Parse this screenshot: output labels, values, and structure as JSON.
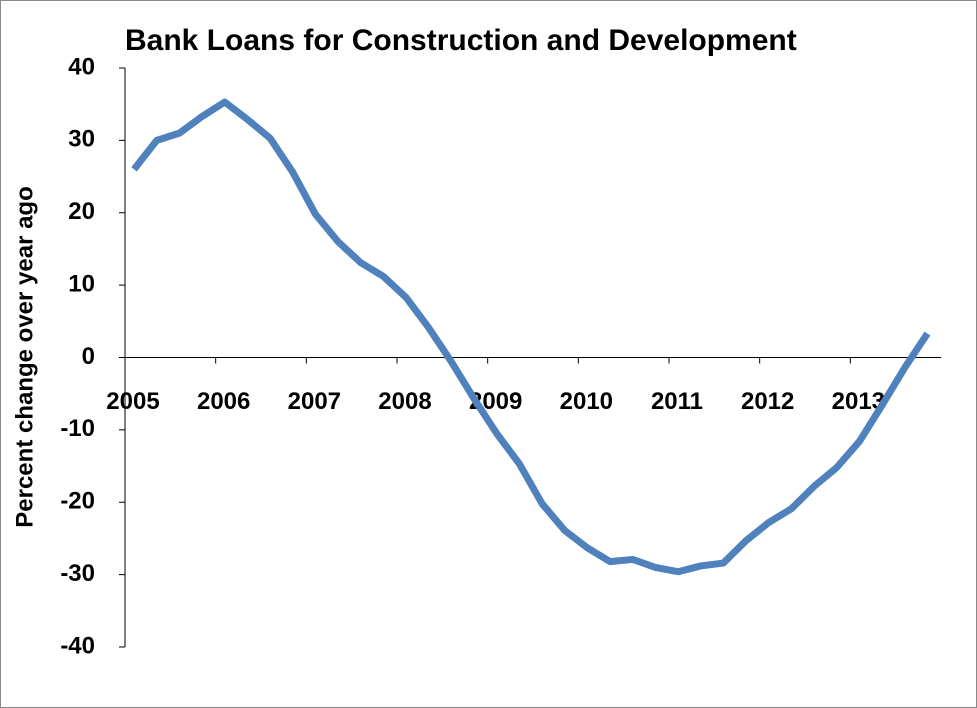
{
  "chart_data": {
    "type": "line",
    "title": "Bank Loans for Construction and Development",
    "y_label": "Percent change over year ago",
    "x": [
      2005.1,
      2005.35,
      2005.6,
      2005.85,
      2006.1,
      2006.35,
      2006.6,
      2006.85,
      2007.1,
      2007.35,
      2007.6,
      2007.85,
      2008.1,
      2008.35,
      2008.6,
      2008.85,
      2009.1,
      2009.35,
      2009.6,
      2009.85,
      2010.1,
      2010.35,
      2010.6,
      2010.85,
      2011.1,
      2011.35,
      2011.6,
      2011.85,
      2012.1,
      2012.35,
      2012.6,
      2012.85,
      2013.1,
      2013.35,
      2013.6,
      2013.85
    ],
    "series": [
      {
        "color": "#4f81bd",
        "values": [
          26.0,
          30.0,
          31.0,
          33.3,
          35.3,
          32.9,
          30.3,
          25.6,
          19.8,
          16.0,
          13.1,
          11.2,
          8.3,
          4.1,
          -0.6,
          -5.7,
          -10.5,
          -14.7,
          -20.2,
          -23.9,
          -26.3,
          -28.2,
          -27.9,
          -29.0,
          -29.6,
          -28.8,
          -28.4,
          -25.3,
          -22.8,
          -20.9,
          -17.8,
          -15.2,
          -11.6,
          -6.6,
          -1.4,
          3.3
        ]
      }
    ],
    "xlim": [
      2005,
      2014
    ],
    "xticks": [
      2005,
      2006,
      2007,
      2008,
      2009,
      2010,
      2011,
      2012,
      2013
    ],
    "ylim": [
      -40,
      40
    ],
    "yticks": [
      -40,
      -30,
      -20,
      -10,
      0,
      10,
      20,
      30,
      40
    ]
  }
}
